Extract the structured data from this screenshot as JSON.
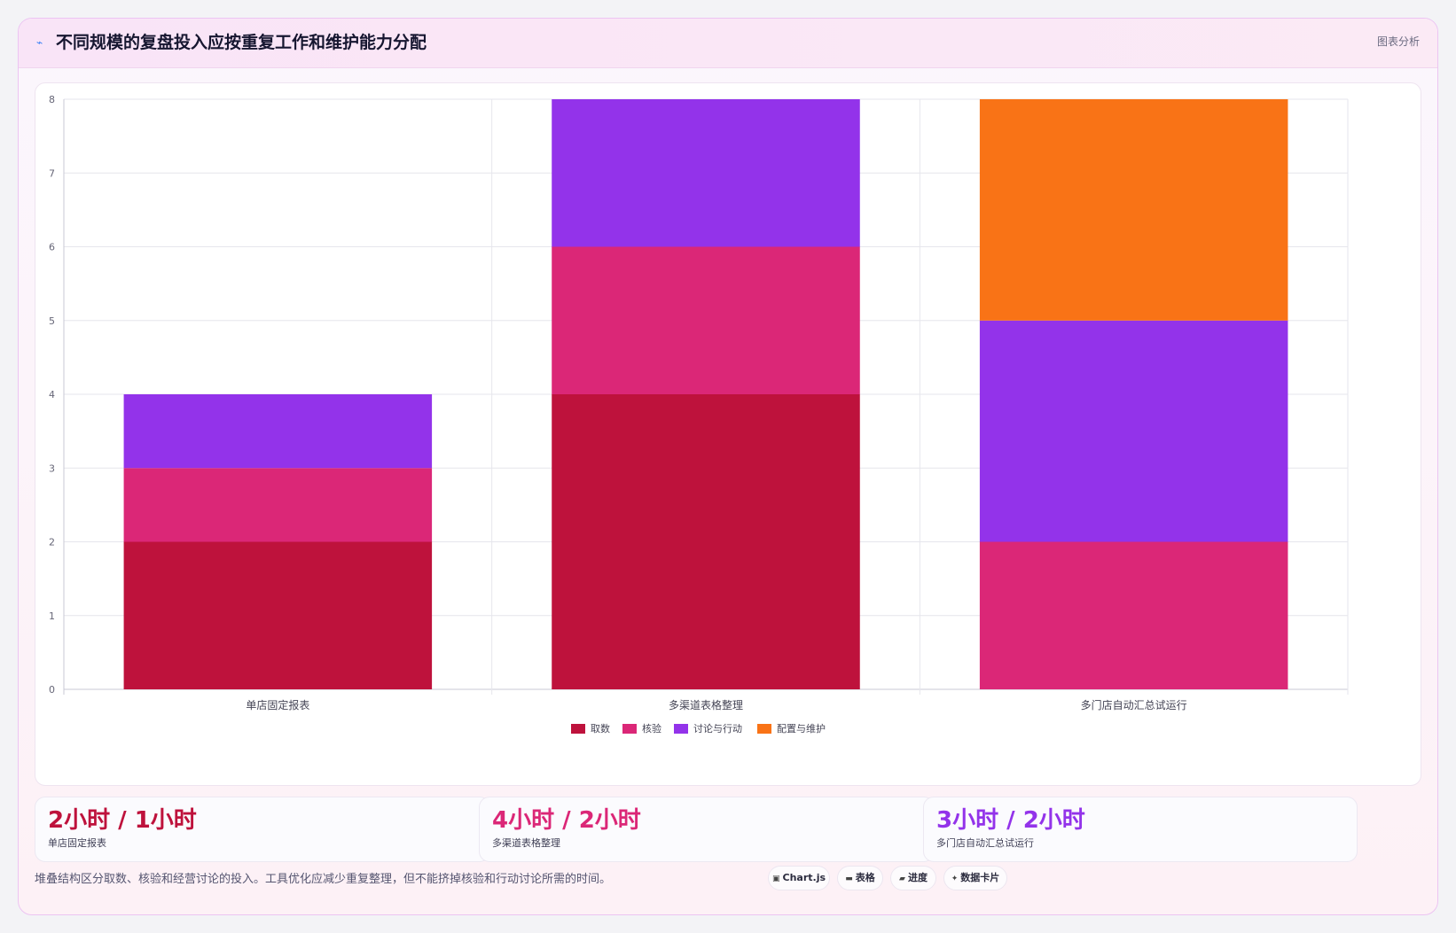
{
  "header": {
    "title": "不同规模的复盘投入应按重复工作和维护能力分配",
    "tag": "图表分析"
  },
  "chart_data": {
    "type": "bar",
    "stacked": true,
    "categories": [
      "单店固定报表",
      "多渠道表格整理",
      "多门店自动汇总试运行"
    ],
    "series": [
      {
        "name": "取数",
        "color": "#be123c",
        "values": [
          2,
          4,
          0
        ]
      },
      {
        "name": "核验",
        "color": "#db2777",
        "values": [
          1,
          2,
          2
        ]
      },
      {
        "name": "讨论与行动",
        "color": "#9333ea",
        "values": [
          1,
          2,
          3
        ]
      },
      {
        "name": "配置与维护",
        "color": "#f97316",
        "values": [
          0,
          0,
          3
        ]
      }
    ],
    "ylim": [
      0,
      8
    ],
    "yticks": [
      "0",
      "1",
      "2",
      "3",
      "4",
      "5",
      "6",
      "7",
      "8"
    ],
    "grid": true,
    "legend": "bottom"
  },
  "stats": [
    {
      "value": "2小时 / 1小时",
      "label": "单店固定报表",
      "color": "#be123c"
    },
    {
      "value": "4小时 / 2小时",
      "label": "多渠道表格整理",
      "color": "#db2777"
    },
    {
      "value": "3小时 / 2小时",
      "label": "多门店自动汇总试运行",
      "color": "#9333ea"
    }
  ],
  "footer": {
    "note": "堆叠结构区分取数、核验和经营讨论的投入。工具优化应减少重复整理，但不能挤掉核验和行动讨论所需的时间。"
  },
  "chips": [
    {
      "icon": "▣",
      "icon_name": "chart-icon",
      "label": "Chart.js"
    },
    {
      "icon": "▬",
      "icon_name": "table-icon",
      "label": "表格"
    },
    {
      "icon": "▰",
      "icon_name": "progress-icon",
      "label": "进度"
    },
    {
      "icon": "✦",
      "icon_name": "card-icon",
      "label": "数据卡片"
    }
  ]
}
